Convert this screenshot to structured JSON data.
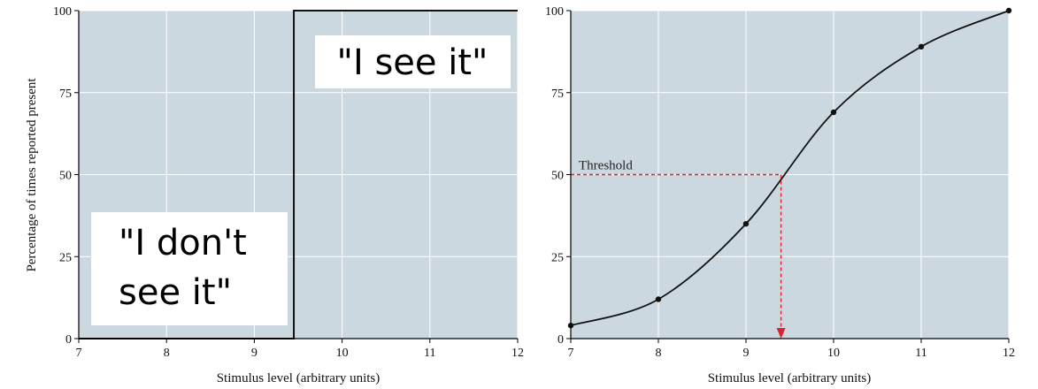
{
  "chart_data": [
    {
      "type": "line",
      "variant": "step",
      "xlabel": "Stimulus level (arbitrary units)",
      "ylabel": "Percentage of times reported present",
      "xlim": [
        7,
        12
      ],
      "ylim": [
        0,
        100
      ],
      "xticks": [
        "7",
        "8",
        "9",
        "10",
        "11",
        "12"
      ],
      "yticks": [
        "0",
        "25",
        "50",
        "75",
        "100"
      ],
      "grid": true,
      "series": [
        {
          "x": [
            7,
            9.45,
            9.45,
            12
          ],
          "y": [
            0,
            0,
            100,
            100
          ]
        }
      ],
      "annotations": {
        "below": "\"I don't see it\"",
        "above": "\"I see it\""
      }
    },
    {
      "type": "line",
      "xlabel": "Stimulus level (arbitrary units)",
      "xlim": [
        7,
        12
      ],
      "ylim": [
        0,
        100
      ],
      "xticks": [
        "7",
        "8",
        "9",
        "10",
        "11",
        "12"
      ],
      "yticks": [
        "0",
        "25",
        "50",
        "75",
        "100"
      ],
      "grid": true,
      "series": [
        {
          "x": [
            7,
            8,
            9,
            10,
            11,
            12
          ],
          "y": [
            4,
            12,
            35,
            69,
            89,
            100
          ]
        }
      ],
      "threshold": {
        "label": "Threshold",
        "y": 50,
        "x": 9.4
      }
    }
  ]
}
